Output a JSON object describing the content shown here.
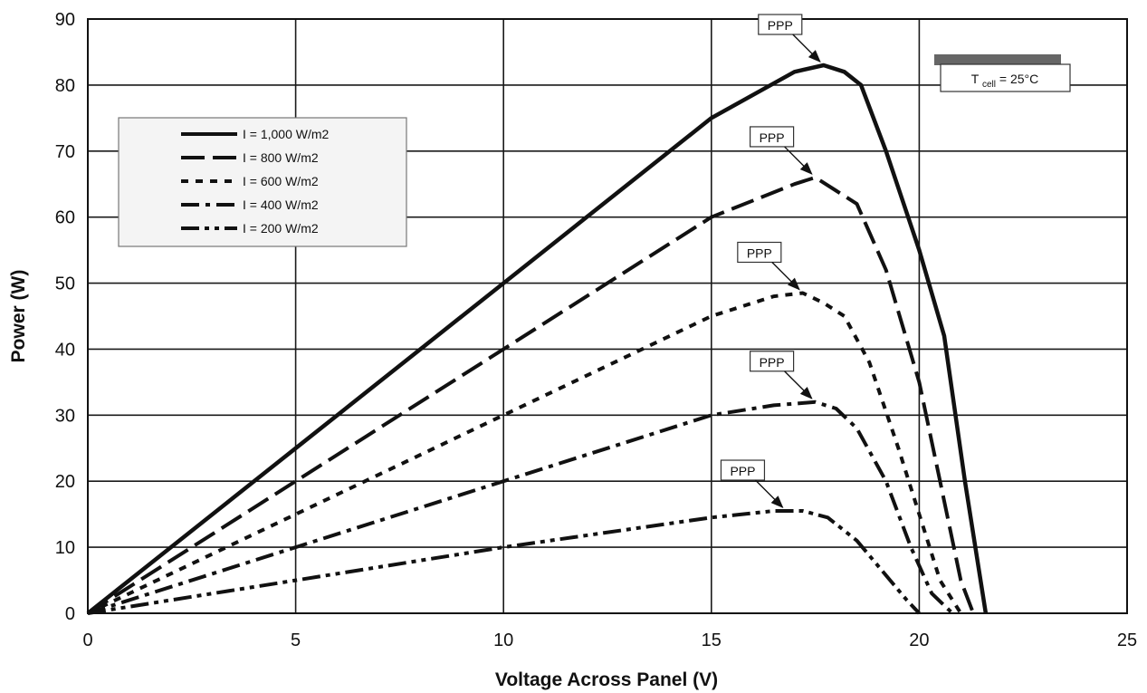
{
  "chart_data": {
    "type": "line",
    "xlabel": "Voltage Across Panel (V)",
    "ylabel": "Power (W)",
    "xlim": [
      0,
      25
    ],
    "ylim": [
      0,
      90
    ],
    "xticks": [
      0,
      5,
      10,
      15,
      20,
      25
    ],
    "yticks": [
      0,
      10,
      20,
      30,
      40,
      50,
      60,
      70,
      80,
      90
    ],
    "grid": true,
    "legend_position": "upper-left",
    "condition_label": {
      "main": "T",
      "sub": "cell",
      "rest": " = 25°C"
    },
    "series": [
      {
        "name": "I = 1,000 W/m2",
        "legend_label": "I = 1,000 W/m2",
        "dash": "solid",
        "x": [
          0,
          2,
          5,
          10,
          15,
          17,
          17.7,
          18.2,
          18.6,
          19.2,
          20,
          20.6,
          21.1,
          21.6
        ],
        "y": [
          0,
          10,
          25,
          50,
          75,
          82,
          83,
          82,
          80,
          70,
          55,
          42,
          20,
          0
        ]
      },
      {
        "name": "I = 800 W/m2",
        "legend_label": "I = 800 W/m2",
        "dash": "long-dash",
        "x": [
          0,
          5,
          10,
          15,
          17,
          17.5,
          18,
          18.5,
          19.2,
          20,
          20.5,
          21.0,
          21.3
        ],
        "y": [
          0,
          20,
          40,
          60,
          65,
          66,
          64,
          62,
          52,
          35,
          20,
          5,
          0
        ]
      },
      {
        "name": "I = 600 W/m2",
        "legend_label": "I = 600 W/m2",
        "dash": "short-dash",
        "x": [
          0,
          5,
          10,
          15,
          16.5,
          17.2,
          17.7,
          18.2,
          18.8,
          19.5,
          20,
          20.5,
          21.0
        ],
        "y": [
          0,
          15,
          30,
          45,
          48,
          48.5,
          47,
          45,
          38,
          25,
          15,
          5,
          0
        ]
      },
      {
        "name": "I = 400 W/m2",
        "legend_label": "I = 400 W/m2",
        "dash": "dash-dot",
        "x": [
          0,
          5,
          10,
          15,
          16.5,
          17.5,
          18,
          18.5,
          19.2,
          19.8,
          20.3,
          20.8
        ],
        "y": [
          0,
          10,
          20,
          30,
          31.5,
          32,
          31,
          28,
          20,
          10,
          3,
          0
        ]
      },
      {
        "name": "I = 200 W/m2",
        "legend_label": "I = 200 W/m2",
        "dash": "dash-dot-dot",
        "x": [
          0,
          5,
          10,
          15,
          16.5,
          17.2,
          17.8,
          18.5,
          19.3,
          19.7,
          20.0
        ],
        "y": [
          0,
          5,
          10,
          14.5,
          15.5,
          15.5,
          14.5,
          11,
          5,
          2,
          0
        ]
      }
    ],
    "annotations": [
      {
        "text": "PPP",
        "series": "I = 1,000 W/m2",
        "x": 17.7,
        "y": 83
      },
      {
        "text": "PPP",
        "series": "I = 800 W/m2",
        "x": 17.5,
        "y": 66
      },
      {
        "text": "PPP",
        "series": "I = 600 W/m2",
        "x": 17.2,
        "y": 48.5
      },
      {
        "text": "PPP",
        "series": "I = 400 W/m2",
        "x": 17.5,
        "y": 32
      },
      {
        "text": "PPP",
        "series": "I = 200 W/m2",
        "x": 16.8,
        "y": 15.5
      }
    ]
  }
}
